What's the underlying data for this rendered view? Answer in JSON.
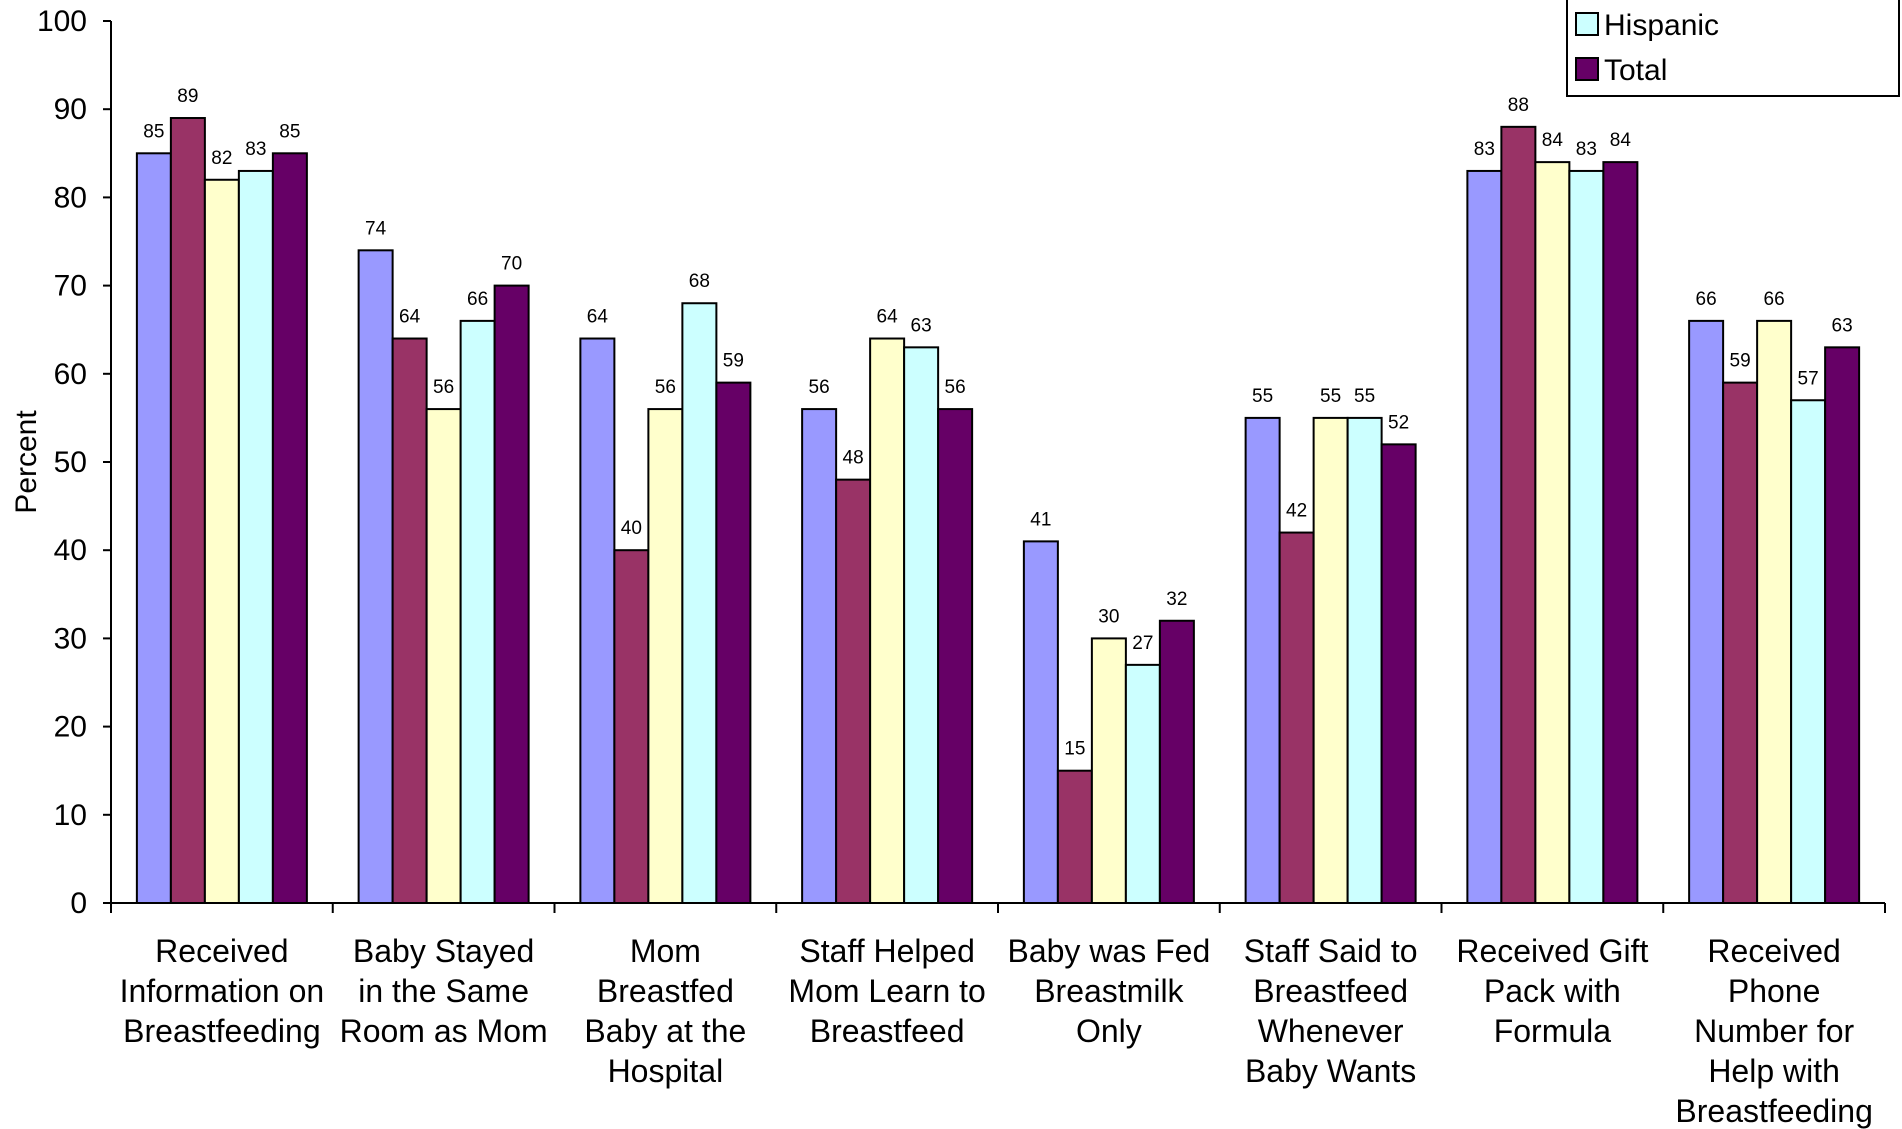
{
  "chart_data": {
    "type": "bar",
    "ylabel": "Percent",
    "ylim": [
      0,
      100
    ],
    "yticks": [
      0,
      10,
      20,
      30,
      40,
      50,
      60,
      70,
      80,
      90,
      100
    ],
    "grid": false,
    "legend_position": "top-right",
    "categories": [
      [
        "Received",
        "Information on",
        "Breastfeeding"
      ],
      [
        "Baby Stayed",
        "in the Same",
        "Room as Mom"
      ],
      [
        "Mom",
        "Breastfed",
        "Baby at the",
        "Hospital"
      ],
      [
        "Staff Helped",
        "Mom Learn to",
        "Breastfeed"
      ],
      [
        "Baby was Fed",
        "Breastmilk",
        "Only"
      ],
      [
        "Staff Said to",
        "Breastfeed",
        "Whenever",
        "Baby Wants"
      ],
      [
        "Received Gift",
        "Pack with",
        "Formula"
      ],
      [
        "Received",
        "Phone",
        "Number for",
        "Help with",
        "Breastfeeding"
      ]
    ],
    "series": [
      {
        "color": "#9999ff",
        "values": [
          85,
          74,
          64,
          56,
          41,
          55,
          83,
          66
        ]
      },
      {
        "color": "#993366",
        "values": [
          89,
          64,
          40,
          48,
          15,
          42,
          88,
          59
        ]
      },
      {
        "color": "#ffffcc",
        "values": [
          82,
          56,
          56,
          64,
          30,
          55,
          84,
          66
        ]
      },
      {
        "name": "Hispanic",
        "color": "#ccffff",
        "values": [
          83,
          66,
          68,
          63,
          27,
          55,
          83,
          57
        ]
      },
      {
        "name": "Total",
        "color": "#660066",
        "values": [
          85,
          70,
          59,
          56,
          32,
          52,
          84,
          63
        ]
      }
    ]
  }
}
